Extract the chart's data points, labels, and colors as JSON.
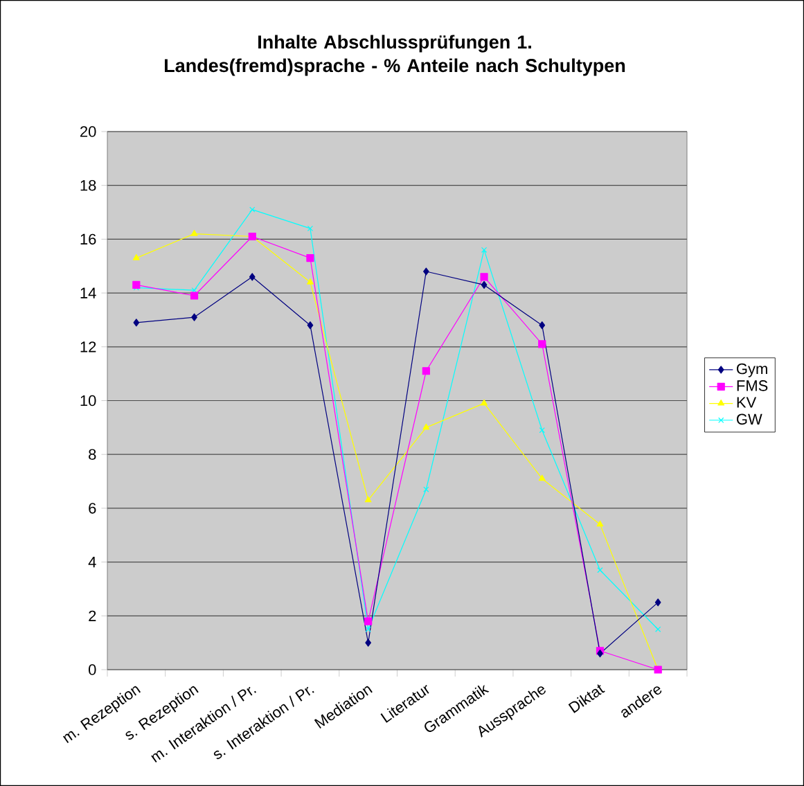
{
  "chart_data": {
    "type": "line",
    "title": "Inhalte Abschlussprüfungen 1. Landes(fremd)sprache - % Anteile nach Schultypen",
    "categories": [
      "m. Rezeption",
      "s. Rezeption",
      "m. Interaktion / Pr.",
      "s. Interaktion / Pr.",
      "Mediation",
      "Literatur",
      "Grammatik",
      "Aussprache",
      "Diktat",
      "andere"
    ],
    "series": [
      {
        "name": "Gym",
        "color": "#000080",
        "marker": "diamond",
        "values": [
          12.9,
          13.1,
          14.6,
          12.8,
          1.0,
          14.8,
          14.3,
          12.8,
          0.6,
          2.5
        ]
      },
      {
        "name": "FMS",
        "color": "#ff00ff",
        "marker": "square",
        "values": [
          14.3,
          13.9,
          16.1,
          15.3,
          1.8,
          11.1,
          14.6,
          12.1,
          0.7,
          0.0
        ]
      },
      {
        "name": "KV",
        "color": "#ffff00",
        "marker": "triangle",
        "values": [
          15.3,
          16.2,
          16.1,
          14.4,
          6.3,
          9.0,
          9.9,
          7.1,
          5.4,
          0.0
        ]
      },
      {
        "name": "GW",
        "color": "#00ffff",
        "marker": "cross",
        "values": [
          14.2,
          14.1,
          17.1,
          16.4,
          1.5,
          6.7,
          15.6,
          8.9,
          3.7,
          1.5
        ]
      }
    ],
    "ylim": [
      0,
      20
    ],
    "yticks": [
      0,
      2,
      4,
      6,
      8,
      10,
      12,
      14,
      16,
      18,
      20
    ],
    "grid": "y",
    "legend": "right"
  }
}
